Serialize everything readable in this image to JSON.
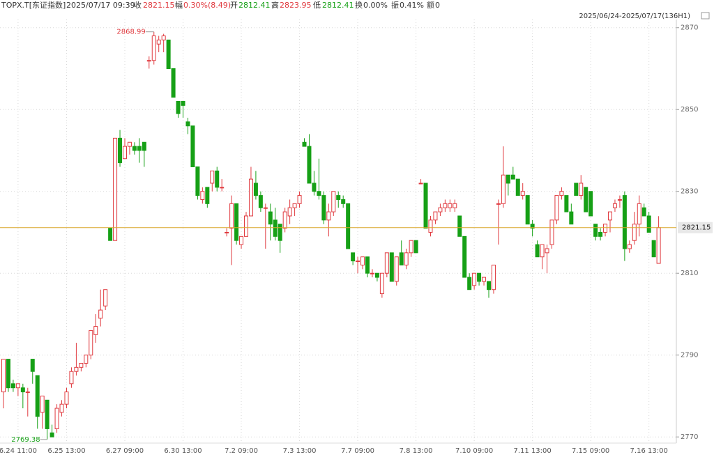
{
  "header": {
    "symbol": "TOPX.T[东证指数]",
    "time": "2025/07/17 09:39",
    "close_label": "收",
    "change_label": "幅",
    "change": "0.30%(8.49)",
    "open_label": "开",
    "high_label": "高",
    "low_label": "低",
    "turnover_label": "换",
    "turnover": "0.00%",
    "amplitude_label": "振",
    "amplitude": "0.41%",
    "amount_label": "额",
    "amount": "0",
    "range": "2025/06/24-2025/07/17(136H1)"
  },
  "chart_data": {
    "type": "candlestick",
    "categories": [
      null,
      null,
      null,
      "6.24 11:00",
      null,
      null,
      null,
      null,
      null,
      null,
      null,
      null,
      null,
      "6.25 13:00",
      null,
      null,
      null,
      null,
      null,
      null,
      null,
      null,
      null,
      null,
      null,
      "6.27 09:00",
      null,
      null,
      null,
      null,
      null,
      null,
      null,
      null,
      null,
      null,
      null,
      "6.30 13:00",
      null,
      null,
      null,
      null,
      null,
      null,
      null,
      null,
      null,
      null,
      null,
      "7.2 09:00",
      null,
      null,
      null,
      null,
      null,
      null,
      null,
      null,
      null,
      null,
      null,
      "7.3 13:00",
      null,
      null,
      null,
      null,
      null,
      null,
      null,
      null,
      null,
      null,
      null,
      "7.7 09:00",
      null,
      null,
      null,
      null,
      null,
      null,
      null,
      null,
      null,
      null,
      null,
      "7.8 13:00",
      null,
      null,
      null,
      null,
      null,
      null,
      null,
      null,
      null,
      null,
      null,
      "7.10 09:00",
      null,
      null,
      null,
      null,
      null,
      null,
      null,
      null,
      null,
      null,
      null,
      "7.11 13:00",
      null,
      null,
      null,
      null,
      null,
      null,
      null,
      null,
      null,
      null,
      null,
      "7.15 09:00",
      null,
      null,
      null,
      null,
      null,
      null,
      null,
      null,
      null,
      null,
      null,
      "7.16 13:00",
      null,
      null
    ],
    "open": [
      2781,
      2789,
      2783,
      2782,
      2782,
      2781,
      2789,
      2785,
      2776,
      2779,
      2771,
      2772,
      2776,
      2778,
      2783,
      2786,
      2787,
      2788,
      2790,
      2795,
      2799,
      2802,
      2821,
      2818,
      2843,
      2838,
      2841,
      2841,
      2841,
      2842,
      2862,
      2862,
      2866,
      2867,
      2867,
      2860,
      2852,
      2852,
      2847,
      2846,
      2836,
      2828,
      2831,
      2832,
      2835,
      2831,
      2820,
      2821,
      2827,
      2817,
      2819,
      2824,
      2832,
      2829,
      2826,
      2825,
      2823,
      2822,
      2821,
      2824,
      2826,
      2827,
      2842,
      2841,
      2832,
      2830,
      2829,
      2823,
      2825,
      2829,
      2828,
      2827,
      2815,
      2813,
      2812,
      2814,
      2810,
      2810,
      2805,
      2810,
      2815,
      2808,
      2815,
      2812,
      2815,
      2818,
      2832,
      2832,
      2820,
      2823,
      2825,
      2826,
      2826,
      2826,
      2824,
      2819,
      2809,
      2807,
      2810,
      2808,
      2808,
      2806,
      2827,
      2827,
      2834,
      2834,
      2833,
      2829,
      2829,
      2822,
      2817,
      2814,
      2815,
      2817,
      2823,
      2829,
      2829,
      2825,
      2832,
      2829,
      2831,
      2830,
      2822,
      2820,
      2820,
      2823,
      2826,
      2828,
      2829,
      2816,
      2818,
      2822,
      2826,
      2824,
      2818,
      2812.41
    ],
    "high": [
      2789,
      2789,
      2784,
      2783,
      2783,
      2782,
      2789,
      2785,
      2780,
      2779,
      2773,
      2778,
      2779,
      2782,
      2787,
      2793,
      2788,
      2790,
      2796,
      2800,
      2806,
      2806,
      2821,
      2843,
      2845,
      2843,
      2842,
      2842,
      2843,
      2842,
      2863,
      2868.99,
      2868,
      2868.5,
      2867,
      2860,
      2852,
      2852,
      2848,
      2846,
      2836,
      2831,
      2831,
      2835,
      2836,
      2833,
      2821,
      2829,
      2827,
      2819,
      2825,
      2836,
      2835,
      2830,
      2827,
      2827,
      2826,
      2822,
      2826,
      2828,
      2827,
      2830,
      2843,
      2844,
      2835,
      2838,
      2830,
      2827,
      2830,
      2830,
      2829,
      2827,
      2815,
      2814,
      2814,
      2814,
      2811,
      2810,
      2810,
      2815,
      2815,
      2814,
      2818,
      2816,
      2818,
      2818,
      2833,
      2832,
      2824,
      2825,
      2827,
      2828,
      2828,
      2828,
      2824,
      2819,
      2810,
      2810,
      2810,
      2809,
      2808,
      2812,
      2828,
      2841,
      2834,
      2836,
      2833,
      2832,
      2829,
      2823,
      2818,
      2817,
      2817,
      2823,
      2829,
      2831,
      2829,
      2827,
      2832,
      2834,
      2831,
      2830,
      2822,
      2821,
      2822,
      2825,
      2828,
      2829,
      2830,
      2818,
      2825,
      2829,
      2827,
      2825,
      2818,
      2823.95
    ],
    "low": [
      2777,
      2781,
      2781,
      2780,
      2777,
      2775,
      2783,
      2772,
      2772,
      2769.38,
      2770,
      2771,
      2775,
      2777,
      2782,
      2785,
      2786,
      2787,
      2789,
      2793,
      2797,
      2801,
      2818,
      2818,
      2836,
      2838,
      2839,
      2839,
      2837,
      2836,
      2860,
      2861,
      2864,
      2864,
      2860,
      2853,
      2848,
      2848,
      2844,
      2836,
      2828,
      2827,
      2826,
      2830,
      2830,
      2830,
      2819,
      2812,
      2817,
      2816,
      2819,
      2824,
      2828,
      2825,
      2816,
      2818,
      2818,
      2815,
      2820,
      2822,
      2824,
      2826,
      2841,
      2832,
      2829,
      2828,
      2822,
      2819,
      2824,
      2826,
      2826,
      2816,
      2812,
      2810,
      2811,
      2809,
      2809,
      2808,
      2804,
      2809,
      2808,
      2807,
      2812,
      2811,
      2814,
      2815,
      2832,
      2821,
      2819,
      2822,
      2824,
      2825,
      2825,
      2825,
      2819,
      2809,
      2806,
      2806,
      2807,
      2807,
      2804,
      2805,
      2817,
      2826,
      2829,
      2833,
      2829,
      2828,
      2822,
      2819,
      2814,
      2811,
      2810,
      2816,
      2822,
      2828,
      2825,
      2822,
      2829,
      2828,
      2825,
      2824,
      2818,
      2818,
      2819,
      2820,
      2825,
      2826,
      2813,
      2815,
      2817,
      2819,
      2824,
      2820,
      2814,
      2812.41
    ],
    "close": [
      2789,
      2782,
      2782,
      2783,
      2781,
      2781,
      2786,
      2775,
      2780,
      2772,
      2770,
      2777,
      2778,
      2781,
      2786,
      2787,
      2788,
      2790,
      2796,
      2797,
      2801,
      2806,
      2818,
      2843,
      2837,
      2841,
      2842,
      2840,
      2840,
      2840,
      2862,
      2868,
      2867,
      2868,
      2860,
      2853,
      2849,
      2851,
      2846,
      2836,
      2829,
      2830,
      2827,
      2835,
      2831,
      2831,
      2820,
      2827,
      2818,
      2819,
      2824,
      2833,
      2829,
      2826,
      2826,
      2822,
      2819,
      2818,
      2825,
      2826,
      2827,
      2829,
      2841,
      2832,
      2830,
      2829,
      2823,
      2825,
      2830,
      2828,
      2827,
      2816,
      2813,
      2813,
      2814,
      2810,
      2810,
      2809,
      2810,
      2815,
      2808,
      2814,
      2812,
      2815,
      2818,
      2815,
      2832,
      2821,
      2823,
      2825,
      2826,
      2827,
      2827,
      2827,
      2819,
      2809,
      2806,
      2810,
      2808,
      2809,
      2806,
      2812,
      2827,
      2834,
      2832,
      2833,
      2829,
      2830,
      2822,
      2821,
      2814,
      2817,
      2816,
      2823,
      2829,
      2830,
      2825,
      2822,
      2829,
      2832,
      2825,
      2824,
      2819,
      2819,
      2822,
      2825,
      2827,
      2828,
      2816,
      2817,
      2822,
      2827,
      2824,
      2820,
      2814,
      2821.15
    ],
    "up_color": "#e0393e",
    "down_color": "#16a016",
    "price_line_color": "#d9a62a",
    "ylim": [
      2768.5,
      2872
    ],
    "yticks": [
      2770,
      2790,
      2810,
      2830,
      2850,
      2870
    ],
    "grid": true
  }
}
